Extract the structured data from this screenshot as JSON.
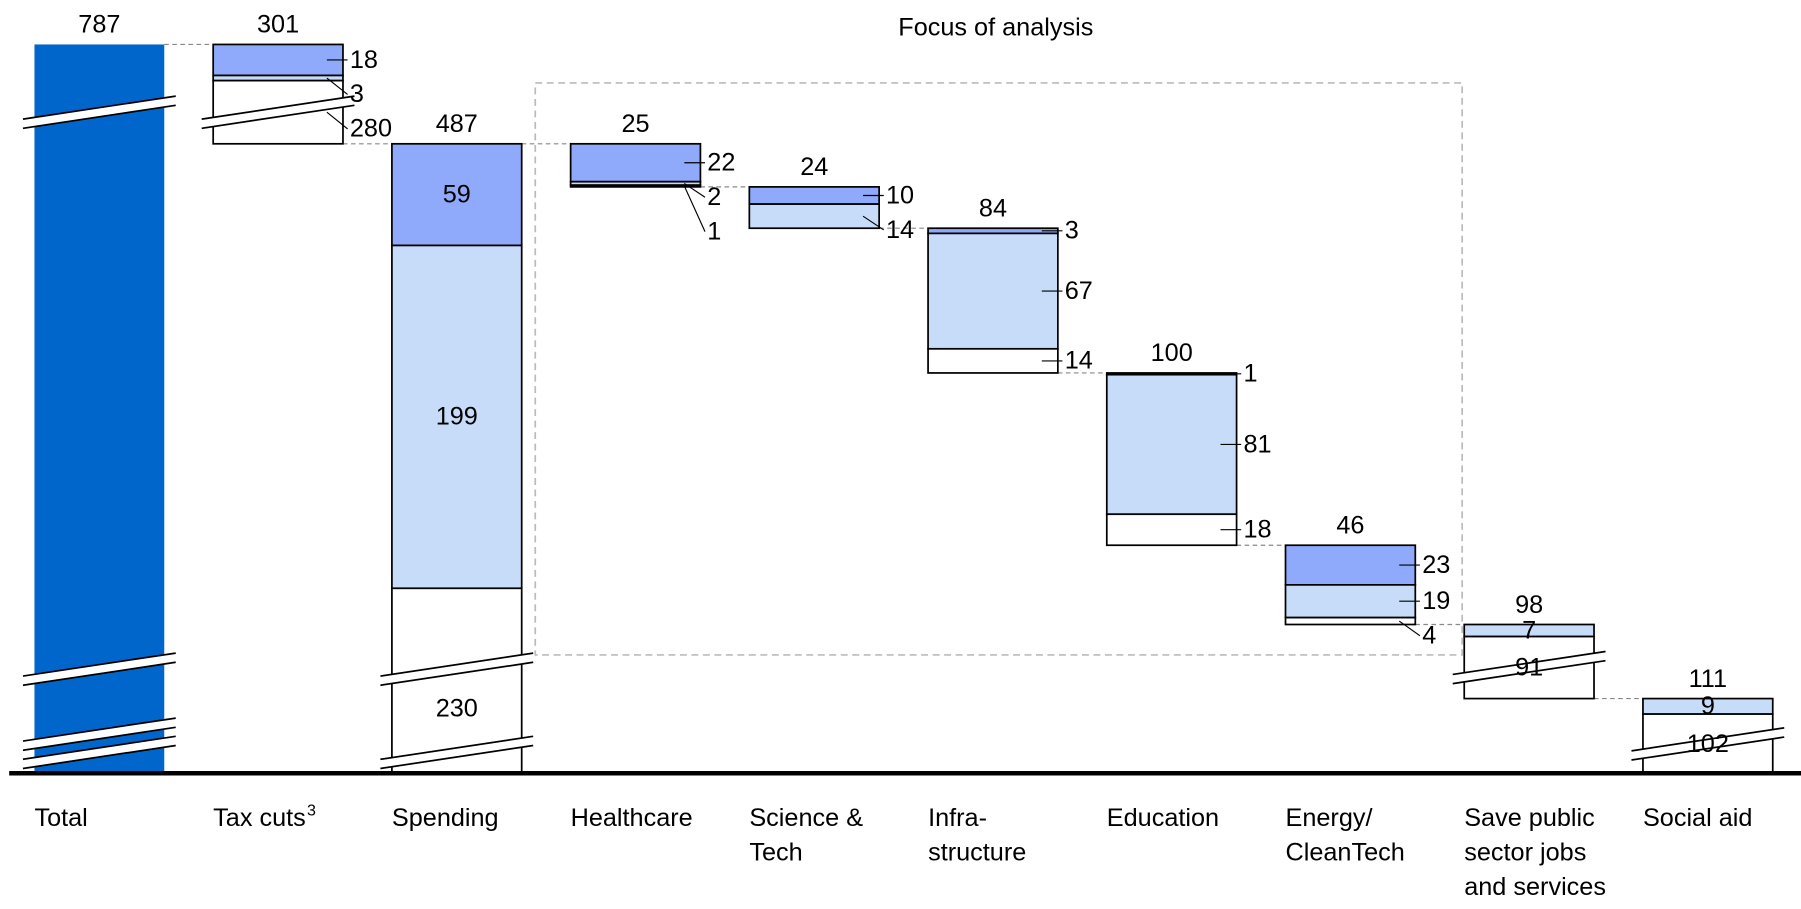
{
  "chart_data": {
    "type": "waterfall",
    "annotation": "Focus of analysis",
    "categories": [
      [
        "Total"
      ],
      [
        "Tax cuts"
      ],
      [
        "Spending"
      ],
      [
        "Healthcare"
      ],
      [
        "Science &",
        "Tech"
      ],
      [
        "Infra-",
        "structure"
      ],
      [
        "Education"
      ],
      [
        "Energy/",
        "CleanTech"
      ],
      [
        "Save public",
        "sector jobs",
        "and services"
      ],
      [
        "Social aid"
      ]
    ],
    "category_notes": [
      null,
      "3",
      null,
      null,
      null,
      null,
      null,
      null,
      null,
      null
    ],
    "totals": [
      787,
      301,
      487,
      25,
      24,
      84,
      100,
      46,
      98,
      111
    ],
    "total_color": "#0066cc",
    "series": [
      {
        "color": "#8faafa",
        "values": [
          null,
          18,
          59,
          22,
          10,
          3,
          1,
          23,
          null,
          null
        ]
      },
      {
        "color": "#c6dcf8",
        "values": [
          null,
          3,
          199,
          2,
          14,
          67,
          81,
          19,
          7,
          9
        ]
      },
      {
        "color": "#ffffff",
        "values": [
          null,
          280,
          230,
          1,
          null,
          14,
          18,
          4,
          91,
          102
        ]
      }
    ]
  }
}
